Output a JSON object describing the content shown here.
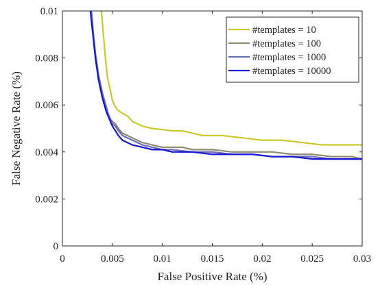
{
  "chart_data": {
    "type": "line",
    "xlabel": "False Positive Rate (%)",
    "ylabel": "False Negative Rate (%)",
    "xlim": [
      0,
      0.03
    ],
    "ylim": [
      0,
      0.01
    ],
    "x_ticks": [
      0,
      0.005,
      0.01,
      0.015,
      0.02,
      0.025,
      0.03
    ],
    "x_tick_labels": [
      "0",
      "0.005",
      "0.01",
      "0.015",
      "0.02",
      "0.025",
      "0.03"
    ],
    "y_ticks": [
      0,
      0.002,
      0.004,
      0.006,
      0.008,
      0.01
    ],
    "y_tick_labels": [
      "0",
      "0.002",
      "0.004",
      "0.006",
      "0.008",
      "0.01"
    ],
    "grid": false,
    "legend_position": "top-right",
    "series": [
      {
        "name": "#templates = 10",
        "color": "#c9c92a",
        "x": [
          0.0039,
          0.004,
          0.0041,
          0.0042,
          0.0043,
          0.0044,
          0.0045,
          0.0047,
          0.0049,
          0.005,
          0.0052,
          0.0055,
          0.0058,
          0.0062,
          0.0066,
          0.007,
          0.0075,
          0.008,
          0.009,
          0.01,
          0.011,
          0.012,
          0.013,
          0.014,
          0.016,
          0.018,
          0.02,
          0.022,
          0.024,
          0.025,
          0.026,
          0.028,
          0.03
        ],
        "y": [
          0.01,
          0.0095,
          0.009,
          0.0085,
          0.008,
          0.0076,
          0.0072,
          0.0068,
          0.0064,
          0.0062,
          0.006,
          0.0058,
          0.0057,
          0.0056,
          0.0055,
          0.0053,
          0.0052,
          0.0051,
          0.005,
          0.00495,
          0.0049,
          0.0049,
          0.0048,
          0.0047,
          0.0047,
          0.0046,
          0.0045,
          0.0045,
          0.0044,
          0.00435,
          0.0043,
          0.0043,
          0.0043
        ]
      },
      {
        "name": "#templates = 100",
        "color": "#8c8c6e",
        "x": [
          0.0029,
          0.003,
          0.0031,
          0.0032,
          0.0033,
          0.0034,
          0.0035,
          0.0036,
          0.0038,
          0.004,
          0.0042,
          0.0044,
          0.0046,
          0.0048,
          0.005,
          0.0053,
          0.0056,
          0.006,
          0.0065,
          0.007,
          0.008,
          0.009,
          0.01,
          0.011,
          0.012,
          0.013,
          0.015,
          0.017,
          0.019,
          0.021,
          0.023,
          0.025,
          0.027,
          0.029,
          0.03
        ],
        "y": [
          0.01,
          0.0095,
          0.009,
          0.0086,
          0.0082,
          0.0079,
          0.0076,
          0.0073,
          0.0069,
          0.0065,
          0.0062,
          0.0059,
          0.0056,
          0.0054,
          0.0053,
          0.0052,
          0.005,
          0.0048,
          0.0047,
          0.0046,
          0.0044,
          0.0043,
          0.0042,
          0.0042,
          0.0042,
          0.0041,
          0.0041,
          0.004,
          0.004,
          0.004,
          0.0039,
          0.0039,
          0.0038,
          0.0038,
          0.0037
        ]
      },
      {
        "name": "#templates = 1000",
        "color": "#6a6ab8",
        "x": [
          0.0029,
          0.003,
          0.0031,
          0.0032,
          0.0033,
          0.0034,
          0.0035,
          0.0036,
          0.0038,
          0.004,
          0.0042,
          0.0044,
          0.0046,
          0.0048,
          0.005,
          0.0053,
          0.0056,
          0.006,
          0.0065,
          0.007,
          0.008,
          0.009,
          0.01,
          0.011,
          0.013,
          0.015,
          0.017,
          0.019,
          0.021,
          0.023,
          0.025,
          0.027,
          0.029,
          0.03
        ],
        "y": [
          0.01,
          0.0095,
          0.009,
          0.0086,
          0.0082,
          0.0079,
          0.0076,
          0.0073,
          0.0069,
          0.0065,
          0.0062,
          0.0059,
          0.0056,
          0.0054,
          0.0052,
          0.0051,
          0.0049,
          0.0047,
          0.0046,
          0.0045,
          0.0043,
          0.0042,
          0.0041,
          0.0041,
          0.004,
          0.004,
          0.0039,
          0.0039,
          0.0038,
          0.0038,
          0.0038,
          0.0037,
          0.0037,
          0.0037
        ]
      },
      {
        "name": "#templates = 10000",
        "color": "#1414d6",
        "x": [
          0.0028,
          0.0029,
          0.003,
          0.0031,
          0.0032,
          0.0033,
          0.0034,
          0.0035,
          0.0036,
          0.0038,
          0.004,
          0.0042,
          0.0044,
          0.0046,
          0.0048,
          0.005,
          0.0053,
          0.0056,
          0.006,
          0.0065,
          0.007,
          0.008,
          0.009,
          0.01,
          0.011,
          0.013,
          0.015,
          0.017,
          0.019,
          0.021,
          0.023,
          0.025,
          0.027,
          0.029,
          0.03
        ],
        "y": [
          0.01,
          0.0096,
          0.0092,
          0.0088,
          0.0084,
          0.008,
          0.0077,
          0.0074,
          0.0071,
          0.0067,
          0.0063,
          0.006,
          0.0057,
          0.0055,
          0.0053,
          0.0051,
          0.0049,
          0.0047,
          0.0045,
          0.0044,
          0.0043,
          0.0042,
          0.0041,
          0.0041,
          0.004,
          0.004,
          0.0039,
          0.0039,
          0.0039,
          0.0038,
          0.0038,
          0.0037,
          0.0037,
          0.0037,
          0.0037
        ]
      }
    ]
  }
}
